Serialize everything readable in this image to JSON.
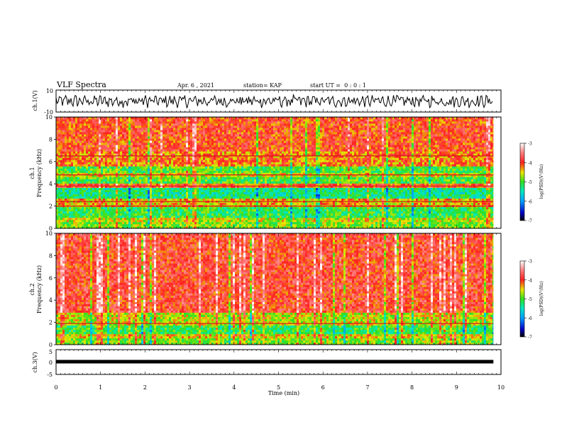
{
  "header": {
    "title": "VLF Spectra",
    "date": "Apr. 6 , 2021",
    "station": "station= KAP",
    "start": "start UT =  0 : 0 : 1"
  },
  "chart_data": [
    {
      "type": "line",
      "panel": "ch1-waveform",
      "ylabel": "ch.1(V)",
      "ylim": [
        -10,
        10
      ],
      "yticks": [
        "10",
        "-10"
      ],
      "xlim": [
        0,
        10
      ],
      "x_data_end": 9.83,
      "signal": "noise-like oscillation roughly between -7 and 7 V"
    },
    {
      "type": "heatmap",
      "panel": "ch1-spectrogram",
      "ylabel": "ch.1\nFrequency (kHz)",
      "ylabel_top": "ch.1",
      "ylabel_bottom": "Frequency (kHz)",
      "ylim": [
        0,
        10
      ],
      "yticks": [
        "0",
        "2",
        "4",
        "6",
        "8",
        "10"
      ],
      "xlim": [
        0,
        10
      ],
      "x_data_end": 9.83,
      "colorbar": {
        "label": "log(PSD)(V²/Hz)",
        "range": [
          -7,
          -3
        ],
        "ticks": [
          "-3",
          "-4",
          "-5",
          "-6",
          "-7"
        ]
      },
      "bands": [
        {
          "from": 0.0,
          "to": 0.5,
          "level": -4.8
        },
        {
          "from": 0.5,
          "to": 1.0,
          "level": -4.6
        },
        {
          "from": 1.0,
          "to": 2.0,
          "level": -5.1
        },
        {
          "from": 2.0,
          "to": 2.6,
          "level": -4.4
        },
        {
          "from": 2.6,
          "to": 3.6,
          "level": -5.3
        },
        {
          "from": 3.6,
          "to": 4.0,
          "level": -4.0
        },
        {
          "from": 4.0,
          "to": 4.6,
          "level": -5.0
        },
        {
          "from": 4.6,
          "to": 5.0,
          "level": -4.6
        },
        {
          "from": 5.0,
          "to": 5.6,
          "level": -5.0
        },
        {
          "from": 5.6,
          "to": 7.0,
          "level": -4.2
        },
        {
          "from": 7.0,
          "to": 10.0,
          "level": -4.0
        }
      ],
      "lines_khz": [
        6.5,
        4.8,
        3.8,
        2.4,
        2.0
      ]
    },
    {
      "type": "heatmap",
      "panel": "ch2-spectrogram",
      "ylabel": "ch.2\nFrequency (kHz)",
      "ylabel_top": "ch.2",
      "ylabel_bottom": "Frequency (kHz)",
      "ylim": [
        0,
        10
      ],
      "yticks": [
        "0",
        "2",
        "4",
        "6",
        "8",
        "10"
      ],
      "xlim": [
        0,
        10
      ],
      "x_data_end": 9.83,
      "colorbar": {
        "label": "log(PSD)(V²/Hz)",
        "range": [
          -7,
          -3
        ],
        "ticks": [
          "-3",
          "-4",
          "-5",
          "-6",
          "-7"
        ]
      },
      "bands": [
        {
          "from": 0.0,
          "to": 0.6,
          "level": -4.8
        },
        {
          "from": 0.6,
          "to": 1.0,
          "level": -4.5
        },
        {
          "from": 1.0,
          "to": 1.8,
          "level": -5.1
        },
        {
          "from": 1.8,
          "to": 2.8,
          "level": -4.6
        },
        {
          "from": 2.8,
          "to": 10.0,
          "level": -3.9
        }
      ],
      "lines_khz": [
        1.9
      ]
    },
    {
      "type": "line",
      "panel": "ch3-waveform",
      "ylabel": "ch.3(V)",
      "ylim": [
        -5,
        5
      ],
      "yticks": [
        "5",
        "0",
        "-5"
      ],
      "xlim": [
        0,
        10
      ],
      "x_data_end": 9.83,
      "signal": "thick flat trace near 0 V"
    }
  ],
  "xaxis": {
    "label": "Time (min)",
    "ticks": [
      "0",
      "1",
      "2",
      "3",
      "4",
      "5",
      "6",
      "7",
      "8",
      "9",
      "10"
    ]
  }
}
